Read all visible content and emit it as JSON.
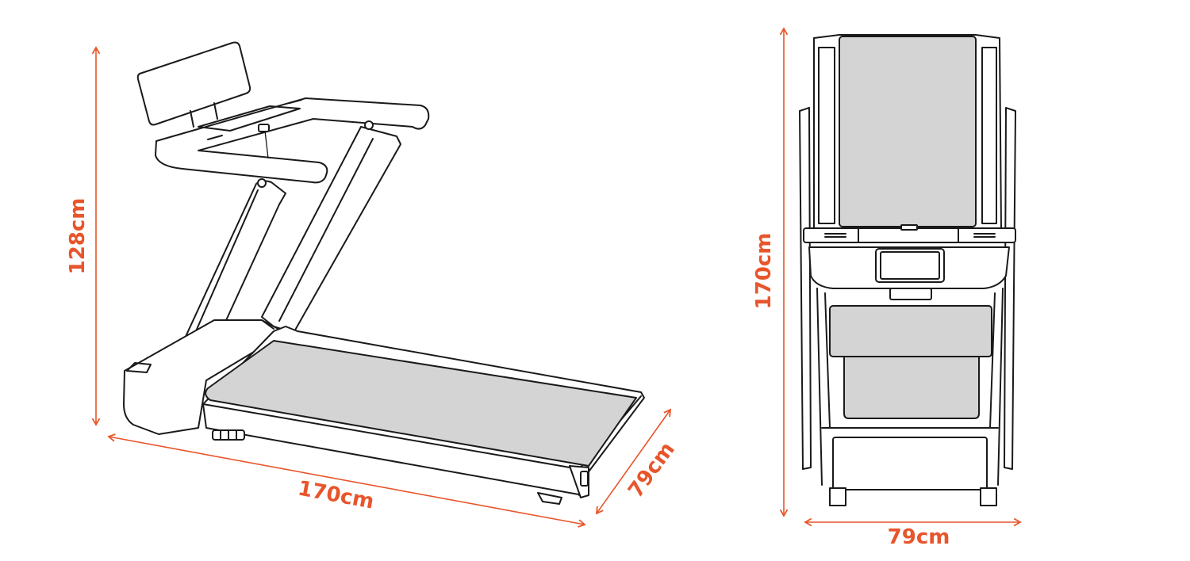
{
  "colors": {
    "dimension": "#E8552B",
    "outline": "#1A1A1A",
    "belt": "#D4D4D4",
    "background": "#FFFFFF"
  },
  "side_view": {
    "height_label": "128cm",
    "length_label": "170cm",
    "width_label": "79cm"
  },
  "front_view": {
    "length_label": "170cm",
    "width_label": "79cm"
  }
}
